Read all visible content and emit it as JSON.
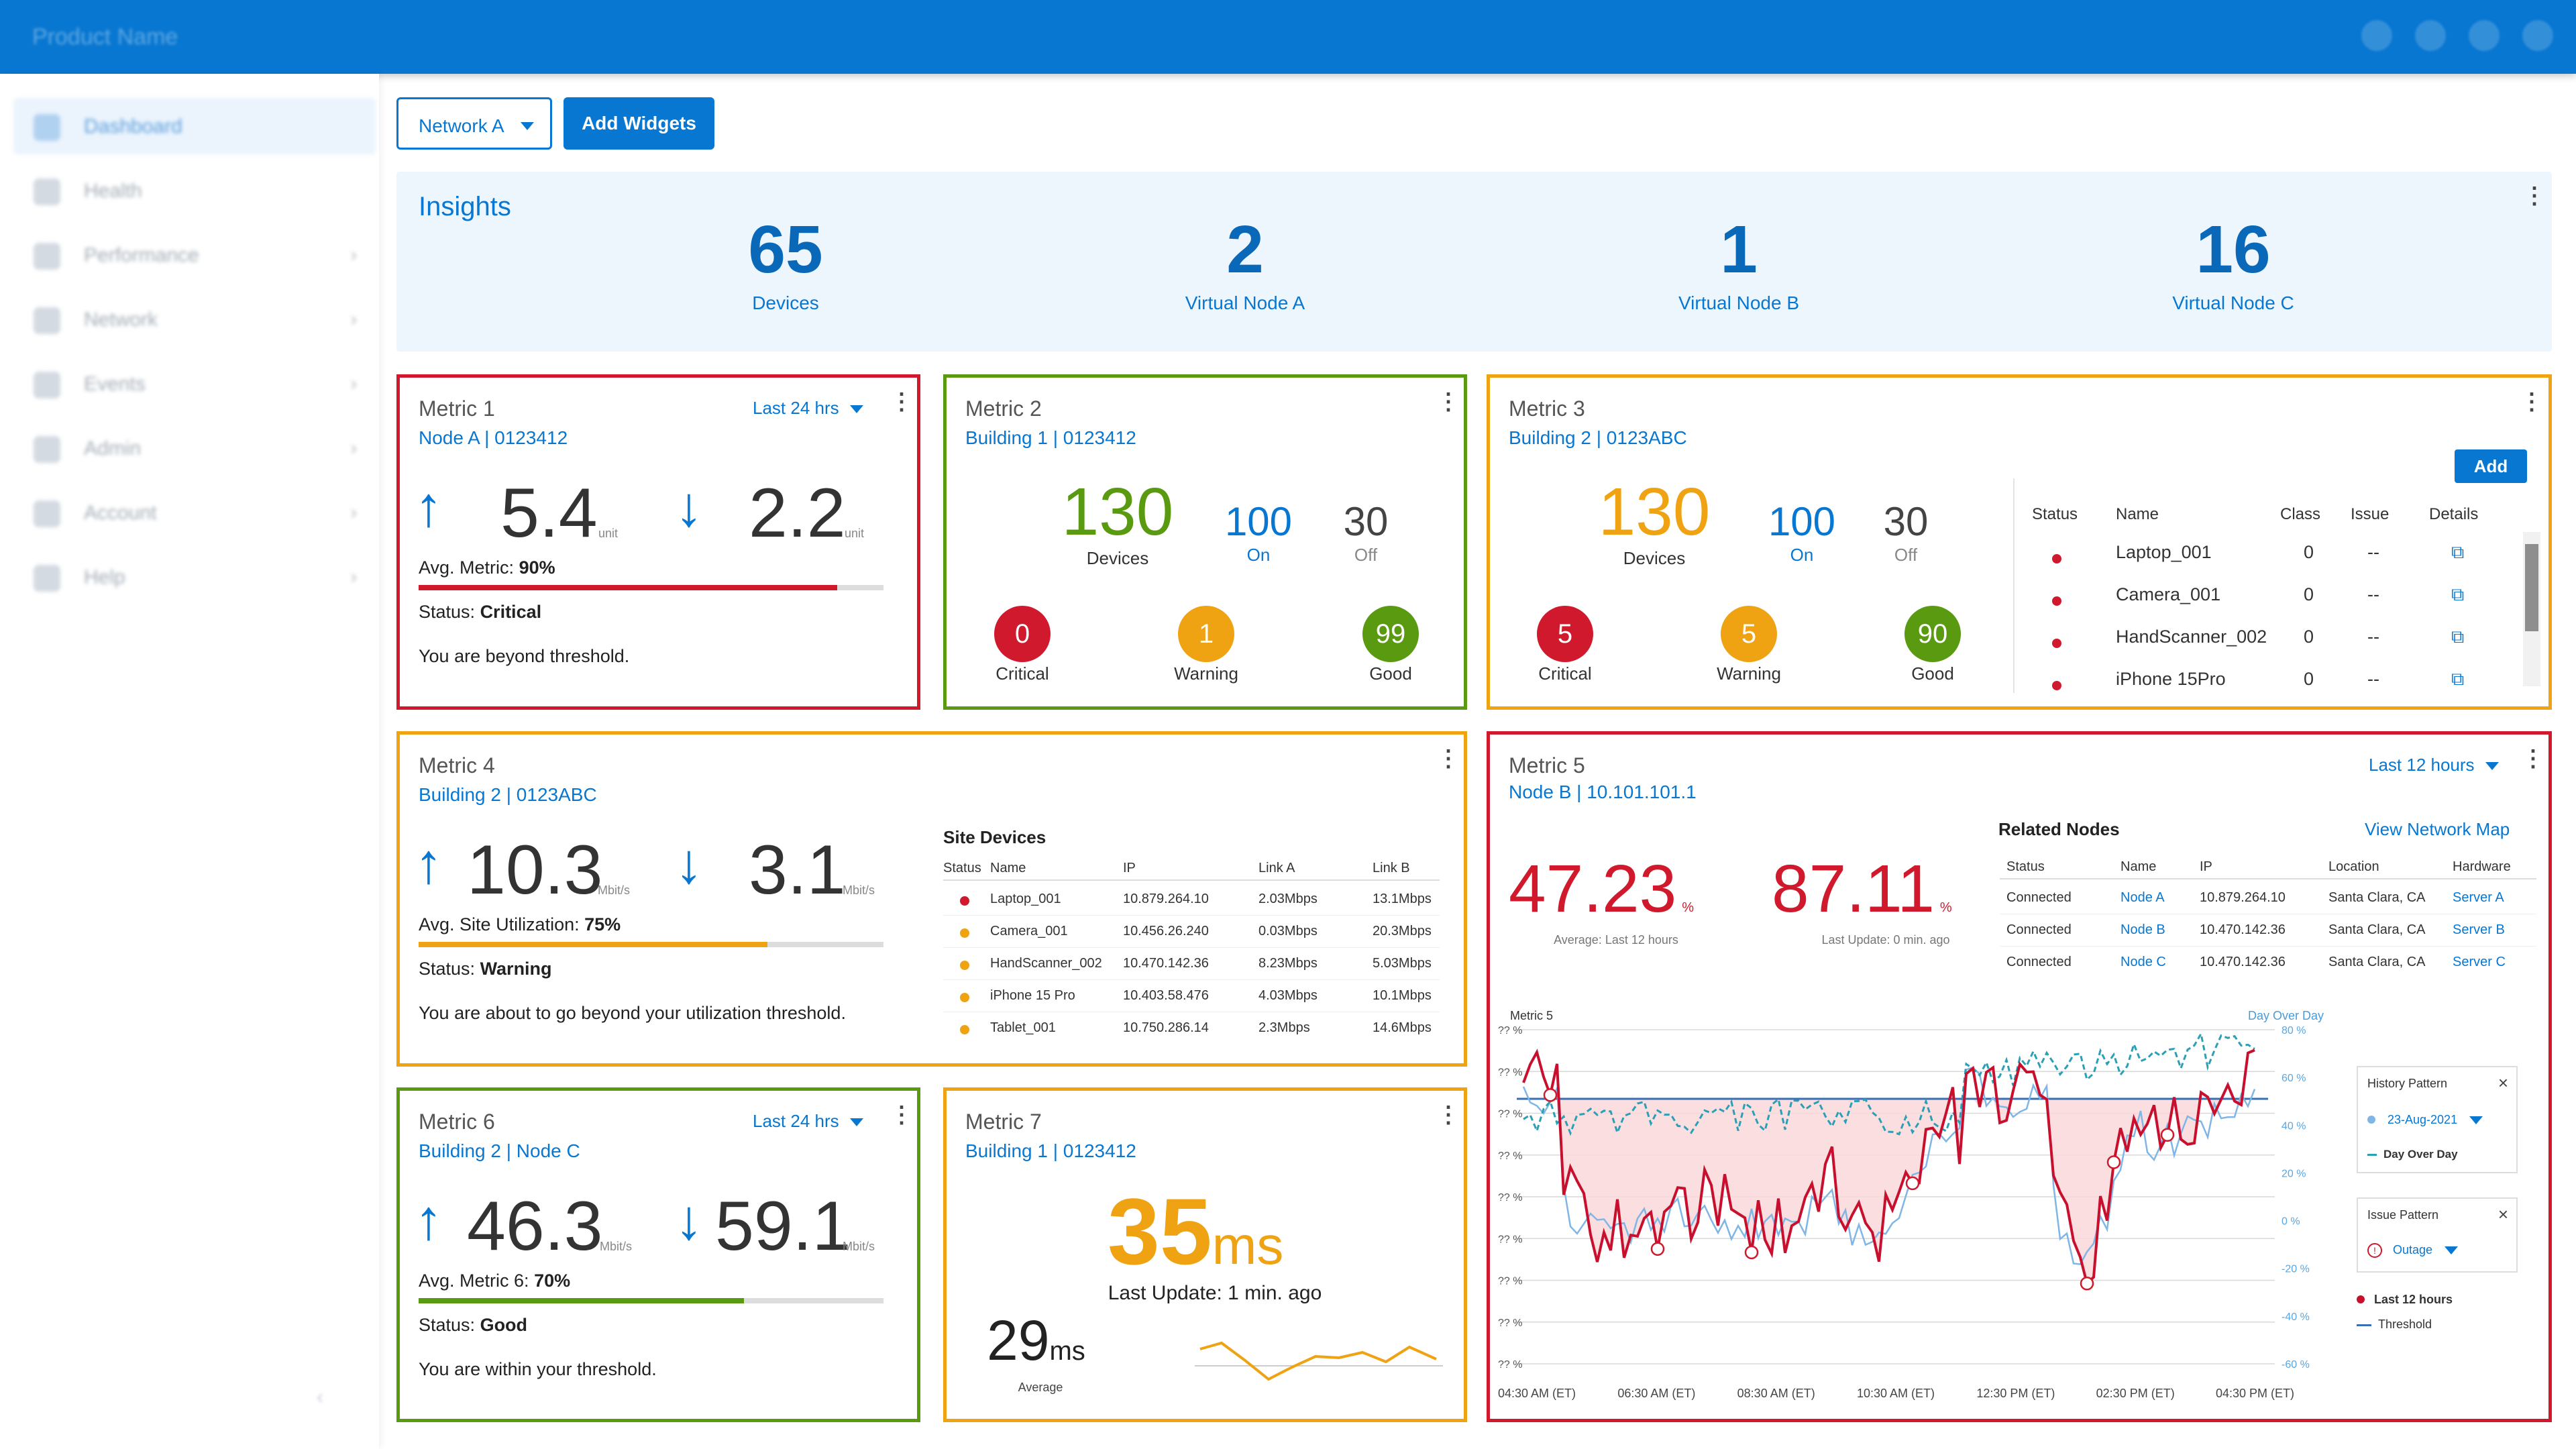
{
  "header": {
    "product_name": "Product Name"
  },
  "sidebar": {
    "items": [
      {
        "label": "Dashboard"
      },
      {
        "label": "Health"
      },
      {
        "label": "Performance"
      },
      {
        "label": "Network"
      },
      {
        "label": "Events"
      },
      {
        "label": "Admin"
      },
      {
        "label": "Account"
      },
      {
        "label": "Help"
      }
    ]
  },
  "toolbar": {
    "network_select": "Network A",
    "add_widgets": "Add Widgets"
  },
  "insights": {
    "title": "Insights",
    "stats": [
      {
        "value": "65",
        "label": "Devices"
      },
      {
        "value": "2",
        "label": "Virtual Node A"
      },
      {
        "value": "1",
        "label": "Virtual Node B"
      },
      {
        "value": "16",
        "label": "Virtual Node C"
      }
    ]
  },
  "metric1": {
    "title": "Metric 1",
    "sub": "Node A | 0123412",
    "range": "Last 24 hrs",
    "up": "5.4",
    "down": "2.2",
    "unit": "unit",
    "avg_label": "Avg. Metric:",
    "avg_value": "90%",
    "avg_pct": 90,
    "status_label": "Status:",
    "status_value": "Critical",
    "message": "You are beyond threshold.",
    "color": "#d0192c"
  },
  "metric2": {
    "title": "Metric 2",
    "sub": "Building 1 | 0123412",
    "devices": "130",
    "devices_label": "Devices",
    "on": "100",
    "on_label": "On",
    "off": "30",
    "off_label": "Off",
    "critical": "0",
    "critical_label": "Critical",
    "warning": "1",
    "warning_label": "Warning",
    "good": "99",
    "good_label": "Good"
  },
  "metric3": {
    "title": "Metric 3",
    "sub": "Building 2 | 0123ABC",
    "devices": "130",
    "devices_label": "Devices",
    "on": "100",
    "on_label": "On",
    "off": "30",
    "off_label": "Off",
    "critical": "5",
    "critical_label": "Critical",
    "warning": "5",
    "warning_label": "Warning",
    "good": "90",
    "good_label": "Good",
    "add_label": "Add",
    "columns": [
      "Status",
      "Name",
      "Class",
      "Issue",
      "Details"
    ],
    "rows": [
      {
        "name": "Laptop_001",
        "class": "0",
        "issue": "--"
      },
      {
        "name": "Camera_001",
        "class": "0",
        "issue": "--"
      },
      {
        "name": "HandScanner_002",
        "class": "0",
        "issue": "--"
      },
      {
        "name": "iPhone 15Pro",
        "class": "0",
        "issue": "--"
      }
    ]
  },
  "metric4": {
    "title": "Metric 4",
    "sub": "Building 2 | 0123ABC",
    "up": "10.3",
    "down": "3.1",
    "unit": "Mbit/s",
    "avg_label": "Avg. Site Utilization:",
    "avg_value": "75%",
    "avg_pct": 75,
    "status_label": "Status:",
    "status_value": "Warning",
    "message": "You are about to go beyond your utilization threshold.",
    "site_devices": {
      "title": "Site Devices",
      "columns": [
        "Status",
        "Name",
        "IP",
        "Link A",
        "Link B"
      ],
      "rows": [
        {
          "status": "red",
          "name": "Laptop_001",
          "ip": "10.879.264.10",
          "a": "2.03Mbps",
          "b": "13.1Mbps"
        },
        {
          "status": "orange",
          "name": "Camera_001",
          "ip": "10.456.26.240",
          "a": "0.03Mbps",
          "b": "20.3Mbps"
        },
        {
          "status": "orange",
          "name": "HandScanner_002",
          "ip": "10.470.142.36",
          "a": "8.23Mbps",
          "b": "5.03Mbps"
        },
        {
          "status": "orange",
          "name": "iPhone 15 Pro",
          "ip": "10.403.58.476",
          "a": "4.03Mbps",
          "b": "10.1Mbps"
        },
        {
          "status": "orange",
          "name": "Tablet_001",
          "ip": "10.750.286.14",
          "a": "2.3Mbps",
          "b": "14.6Mbps"
        }
      ]
    }
  },
  "metric5": {
    "title": "Metric 5",
    "sub": "Node B | 10.101.101.1",
    "range": "Last 12 hours",
    "value1": "47.23",
    "value1_unit": "%",
    "value1_caption": "Average: Last 12 hours",
    "value2": "87.11",
    "value2_unit": "%",
    "value2_caption": "Last Update: 0 min. ago",
    "related": {
      "title": "Related Nodes",
      "link": "View Network Map",
      "columns": [
        "Status",
        "Name",
        "IP",
        "Location",
        "Hardware"
      ],
      "rows": [
        {
          "status": "Connected",
          "name": "Node A",
          "ip": "10.879.264.10",
          "location": "Santa Clara, CA",
          "hw": "Server A"
        },
        {
          "status": "Connected",
          "name": "Node B",
          "ip": "10.470.142.36",
          "location": "Santa Clara, CA",
          "hw": "Server B"
        },
        {
          "status": "Connected",
          "name": "Node C",
          "ip": "10.470.142.36",
          "location": "Santa Clara, CA",
          "hw": "Server C"
        }
      ]
    },
    "chart": {
      "ylabel": "Metric 5",
      "right_label": "Day Over Day",
      "left_ticks": [
        "?? %",
        "?? %",
        "?? %",
        "?? %",
        "?? %",
        "?? %",
        "?? %",
        "?? %",
        "?? %"
      ],
      "right_ticks": [
        "80 %",
        "60 %",
        "40 %",
        "20 %",
        "0 %",
        "-20 %",
        "-40 %",
        "-60 %"
      ],
      "x_ticks": [
        "04:30 AM (ET)",
        "06:30 AM (ET)",
        "08:30 AM (ET)",
        "10:30 AM (ET)",
        "12:30 PM (ET)",
        "02:30 PM (ET)",
        "04:30 PM (ET)"
      ]
    },
    "history": {
      "title": "History Pattern",
      "date": "23-Aug-2021",
      "day_over_day": "Day Over Day"
    },
    "issue": {
      "title": "Issue Pattern",
      "outage": "Outage"
    },
    "legend": {
      "last12": "Last 12 hours",
      "threshold": "Threshold"
    }
  },
  "metric6": {
    "title": "Metric 6",
    "sub": "Building 2 | Node C",
    "range": "Last 24 hrs",
    "up": "46.3",
    "down": "59.1",
    "unit": "Mbit/s",
    "avg_label": "Avg. Metric 6:",
    "avg_value": "70%",
    "avg_pct": 70,
    "status_label": "Status:",
    "status_value": "Good",
    "message": "You are within your threshold.",
    "color": "#5a9a10"
  },
  "metric7": {
    "title": "Metric 7",
    "sub": "Building 1 | 0123412",
    "big": "35",
    "big_unit": "ms",
    "last_update": "Last Update: 1 min. ago",
    "avg": "29",
    "avg_unit": "ms",
    "avg_label": "Average"
  },
  "colors": {
    "primary": "#0877d1",
    "critical": "#d0192c",
    "warning": "#efa212",
    "good": "#5a9a10"
  }
}
